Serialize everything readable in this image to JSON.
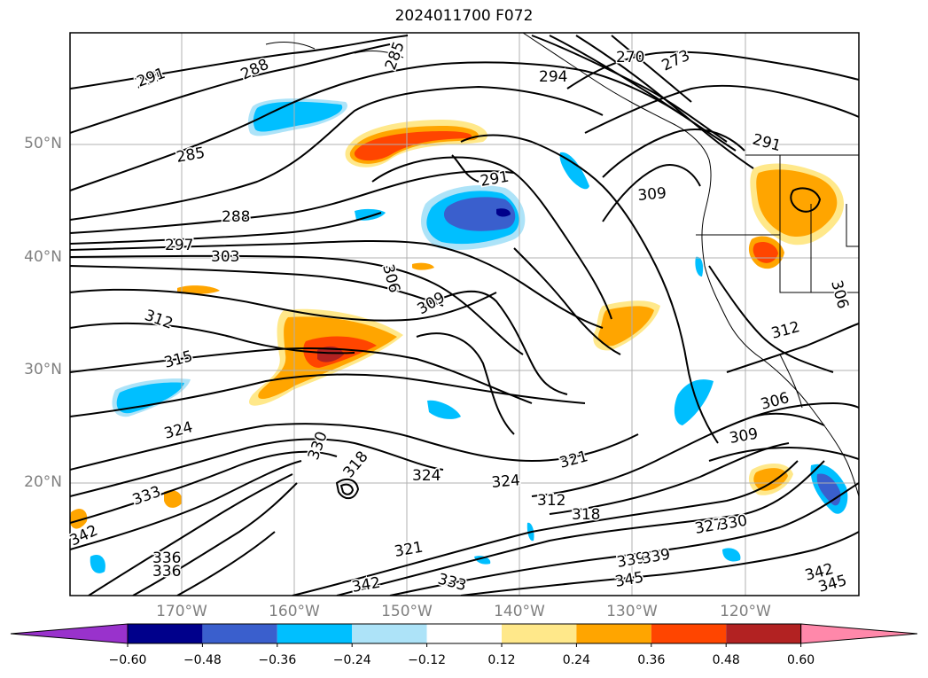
{
  "title": "2024011700 F072",
  "lat_labels": [
    "50°N",
    "40°N",
    "30°N",
    "20°N"
  ],
  "lon_labels": [
    "170°W",
    "160°W",
    "150°W",
    "140°W",
    "130°W",
    "120°W"
  ],
  "contour_labels": [
    "291",
    "285",
    "288",
    "291",
    "270",
    "273",
    "294",
    "285",
    "291",
    "309",
    "291",
    "288",
    "297",
    "303",
    "306",
    "309",
    "312",
    "315",
    "312",
    "306",
    "324",
    "330",
    "318",
    "324",
    "324",
    "321",
    "312",
    "318",
    "309",
    "333",
    "336",
    "342",
    "321",
    "333",
    "339",
    "345",
    "342",
    "345",
    "306",
    "327",
    "330",
    "336",
    "339",
    "342"
  ],
  "colorbar": {
    "ticks": [
      "−0.60",
      "−0.48",
      "−0.36",
      "−0.24",
      "−0.12",
      "0.12",
      "0.24",
      "0.36",
      "0.48",
      "0.60"
    ],
    "colors": [
      "#9932CC",
      "#00008B",
      "#3A5FCD",
      "#00BFFF",
      "#ADE3F8",
      "#FFFFFF",
      "#FFE88A",
      "#FFA500",
      "#FF4500",
      "#B22222",
      "#FF88AA"
    ]
  }
}
